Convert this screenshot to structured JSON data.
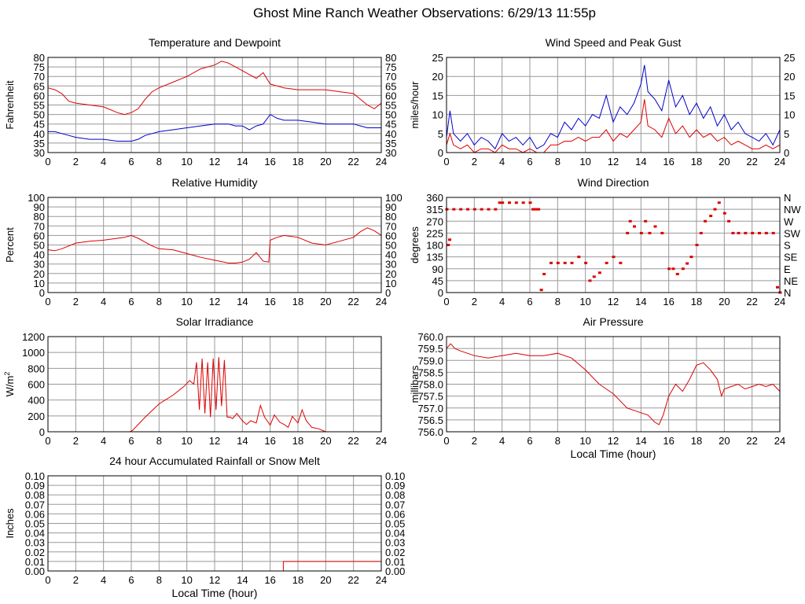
{
  "title": "Ghost Mine Ranch Weather Observations: 6/29/13 11:55p",
  "chart_data": [
    {
      "id": "temp",
      "type": "line",
      "title": "Temperature and Dewpoint",
      "ylabel": "Fahrenheit",
      "xlabel": "",
      "xlim": [
        0,
        24
      ],
      "ylim": [
        30,
        80
      ],
      "xticks": [
        "0",
        "2",
        "4",
        "6",
        "8",
        "10",
        "12",
        "14",
        "16",
        "18",
        "20",
        "22",
        "24"
      ],
      "yticks": [
        "30",
        "35",
        "40",
        "45",
        "50",
        "55",
        "60",
        "65",
        "70",
        "75",
        "80"
      ],
      "right_ticks": [
        "30",
        "35",
        "40",
        "45",
        "50",
        "55",
        "60",
        "65",
        "70",
        "75",
        "80"
      ],
      "series": [
        {
          "name": "",
          "color": "#dd0000",
          "x": [
            0,
            0.5,
            1,
            1.5,
            2,
            3,
            4,
            5,
            5.5,
            6,
            6.5,
            7,
            7.5,
            8,
            9,
            10,
            11,
            12,
            12.5,
            13,
            13.5,
            14,
            14.5,
            15,
            15.5,
            16,
            16.5,
            17,
            18,
            19,
            20,
            21,
            22,
            22.5,
            23,
            23.5,
            24
          ],
          "y": [
            64,
            63,
            61,
            57,
            56,
            55,
            54,
            51,
            50,
            51,
            53,
            58,
            62,
            64,
            67,
            70,
            74,
            76,
            78,
            77,
            75,
            73,
            71,
            69,
            72,
            66,
            65,
            64,
            63,
            63,
            63,
            62,
            61,
            58,
            55,
            53,
            56
          ]
        },
        {
          "name": "",
          "color": "#0000cc",
          "x": [
            0,
            0.5,
            1,
            1.5,
            2,
            3,
            4,
            5,
            5.5,
            6,
            6.5,
            7,
            7.5,
            8,
            9,
            10,
            11,
            12,
            12.5,
            13,
            13.5,
            14,
            14.5,
            15,
            15.5,
            16,
            16.5,
            17,
            18,
            19,
            20,
            21,
            22,
            22.5,
            23,
            23.5,
            24
          ],
          "y": [
            41,
            41,
            40,
            39,
            38,
            37,
            37,
            36,
            36,
            36,
            37,
            39,
            40,
            41,
            42,
            43,
            44,
            45,
            45,
            45,
            44,
            44,
            42,
            44,
            45,
            50,
            48,
            47,
            47,
            46,
            45,
            45,
            45,
            44,
            43,
            43,
            43
          ]
        }
      ]
    },
    {
      "id": "wind",
      "type": "line",
      "title": "Wind Speed and Peak Gust",
      "ylabel": "miles/hour",
      "xlabel": "",
      "xlim": [
        0,
        24
      ],
      "ylim": [
        0,
        25
      ],
      "xticks": [
        "0",
        "2",
        "4",
        "6",
        "8",
        "10",
        "12",
        "14",
        "16",
        "18",
        "20",
        "22",
        "24"
      ],
      "yticks": [
        "0",
        "5",
        "10",
        "15",
        "20",
        "25"
      ],
      "right_ticks": [
        "0",
        "5",
        "10",
        "15",
        "20",
        "25"
      ],
      "series": [
        {
          "name": "",
          "color": "#0000cc",
          "x": [
            0,
            0.25,
            0.5,
            1,
            1.5,
            2,
            2.5,
            3,
            3.5,
            4,
            4.5,
            5,
            5.5,
            6,
            6.5,
            7,
            7.5,
            8,
            8.5,
            9,
            9.5,
            10,
            10.5,
            11,
            11.5,
            12,
            12.5,
            13,
            13.5,
            14,
            14.25,
            14.5,
            15,
            15.5,
            16,
            16.5,
            17,
            17.5,
            18,
            18.5,
            19,
            19.5,
            20,
            20.5,
            21,
            21.5,
            22,
            22.5,
            23,
            23.5,
            24
          ],
          "y": [
            4,
            11,
            5,
            3,
            5,
            2,
            4,
            3,
            1,
            5,
            3,
            4,
            2,
            4,
            1,
            2,
            5,
            4,
            8,
            6,
            9,
            7,
            10,
            9,
            15,
            8,
            12,
            10,
            13,
            18,
            23,
            16,
            14,
            11,
            19,
            12,
            15,
            10,
            13,
            9,
            12,
            7,
            10,
            6,
            8,
            5,
            4,
            3,
            5,
            2,
            6
          ]
        },
        {
          "name": "",
          "color": "#dd0000",
          "x": [
            0,
            0.25,
            0.5,
            1,
            1.5,
            2,
            2.5,
            3,
            3.5,
            4,
            4.5,
            5,
            5.5,
            6,
            6.5,
            7,
            7.5,
            8,
            8.5,
            9,
            9.5,
            10,
            10.5,
            11,
            11.5,
            12,
            12.5,
            13,
            13.5,
            14,
            14.25,
            14.5,
            15,
            15.5,
            16,
            16.5,
            17,
            17.5,
            18,
            18.5,
            19,
            19.5,
            20,
            20.5,
            21,
            21.5,
            22,
            22.5,
            23,
            23.5,
            24
          ],
          "y": [
            2,
            5,
            2,
            1,
            2,
            0,
            1,
            1,
            0,
            2,
            1,
            1,
            0,
            1,
            0,
            0,
            2,
            2,
            3,
            3,
            4,
            3,
            4,
            4,
            6,
            3,
            5,
            4,
            6,
            8,
            14,
            7,
            6,
            4,
            9,
            5,
            7,
            4,
            6,
            4,
            5,
            3,
            4,
            2,
            3,
            2,
            1,
            1,
            2,
            1,
            2
          ]
        }
      ]
    },
    {
      "id": "humidity",
      "type": "line",
      "title": "Relative Humidity",
      "ylabel": "Percent",
      "xlabel": "",
      "xlim": [
        0,
        24
      ],
      "ylim": [
        0,
        100
      ],
      "xticks": [
        "0",
        "2",
        "4",
        "6",
        "8",
        "10",
        "12",
        "14",
        "16",
        "18",
        "20",
        "22",
        "24"
      ],
      "yticks": [
        "0",
        "10",
        "20",
        "30",
        "40",
        "50",
        "60",
        "70",
        "80",
        "90",
        "100"
      ],
      "right_ticks": [
        "0",
        "10",
        "20",
        "30",
        "40",
        "50",
        "60",
        "70",
        "80",
        "90",
        "100"
      ],
      "series": [
        {
          "name": "",
          "color": "#dd0000",
          "x": [
            0,
            0.5,
            1,
            2,
            3,
            4,
            5,
            5.5,
            6,
            6.5,
            7,
            7.5,
            8,
            9,
            10,
            11,
            12,
            13,
            13.5,
            14,
            14.5,
            15,
            15.5,
            15.9,
            16,
            16.5,
            17,
            18,
            19,
            20,
            21,
            22,
            22.5,
            23,
            23.5,
            24
          ],
          "y": [
            45,
            44,
            46,
            52,
            54,
            55,
            57,
            58,
            60,
            57,
            53,
            49,
            46,
            45,
            41,
            37,
            34,
            31,
            31,
            32,
            35,
            42,
            33,
            32,
            55,
            58,
            60,
            58,
            52,
            50,
            54,
            58,
            64,
            68,
            65,
            60
          ]
        }
      ]
    },
    {
      "id": "direction",
      "type": "scatter",
      "title": "Wind Direction",
      "ylabel": "degrees",
      "xlabel": "",
      "xlim": [
        0,
        24
      ],
      "ylim": [
        0,
        360
      ],
      "xticks": [
        "0",
        "2",
        "4",
        "6",
        "8",
        "10",
        "12",
        "14",
        "16",
        "18",
        "20",
        "22",
        "24"
      ],
      "yticks": [
        "0",
        "45",
        "90",
        "135",
        "180",
        "225",
        "270",
        "315",
        "360"
      ],
      "right_ticks": [
        "N",
        "NE",
        "E",
        "SE",
        "S",
        "SW",
        "W",
        "NW",
        "N"
      ],
      "series": [
        {
          "name": "",
          "color": "#dd0000",
          "x": [
            0,
            0.1,
            0.2,
            0.5,
            1,
            1.5,
            2,
            2.5,
            3,
            3.5,
            3.8,
            4,
            4.5,
            5,
            5.5,
            6,
            6.2,
            6.4,
            6.6,
            6.8,
            7,
            7.5,
            8,
            8.5,
            9,
            9.5,
            10,
            10.3,
            10.6,
            11,
            11.5,
            12,
            12.5,
            13,
            13.2,
            13.5,
            14,
            14.3,
            14.6,
            15,
            15.5,
            16,
            16.3,
            16.6,
            17,
            17.3,
            17.6,
            18,
            18.3,
            18.6,
            19,
            19.3,
            19.6,
            20,
            20.3,
            20.6,
            21,
            21.5,
            22,
            22.5,
            23,
            23.5,
            23.8,
            24
          ],
          "y": [
            315,
            180,
            200,
            315,
            315,
            315,
            315,
            315,
            315,
            315,
            340,
            340,
            340,
            340,
            340,
            340,
            315,
            315,
            315,
            10,
            70,
            112,
            112,
            112,
            112,
            135,
            112,
            45,
            60,
            75,
            112,
            135,
            112,
            225,
            270,
            250,
            225,
            270,
            225,
            250,
            225,
            90,
            90,
            70,
            90,
            110,
            135,
            180,
            225,
            270,
            290,
            315,
            340,
            300,
            270,
            225,
            225,
            225,
            225,
            225,
            225,
            225,
            20,
            0
          ]
        }
      ]
    },
    {
      "id": "solar",
      "type": "line",
      "title": "Solar Irradiance",
      "ylabel": "W/m2",
      "xlabel": "",
      "xlim": [
        0,
        24
      ],
      "ylim": [
        0,
        1300
      ],
      "xticks": [
        "0",
        "2",
        "4",
        "6",
        "8",
        "10",
        "12",
        "14",
        "16",
        "18",
        "20",
        "22",
        "24"
      ],
      "yticks": [
        "0",
        "200",
        "400",
        "600",
        "800",
        "1000",
        "1200"
      ],
      "right_ticks": [],
      "series": [
        {
          "name": "",
          "color": "#dd0000",
          "x": [
            0,
            5.9,
            6.1,
            7,
            8,
            9,
            9.8,
            10.2,
            10.5,
            10.7,
            10.9,
            11.1,
            11.3,
            11.5,
            11.7,
            11.9,
            12.1,
            12.3,
            12.5,
            12.7,
            12.9,
            13.1,
            13.3,
            13.6,
            14,
            14.3,
            14.6,
            15,
            15.3,
            15.6,
            16,
            16.3,
            16.7,
            17,
            17.3,
            17.6,
            18,
            18.3,
            18.6,
            19,
            19.5,
            20,
            20.5,
            21,
            24
          ],
          "y": [
            0,
            0,
            20,
            200,
            380,
            500,
            620,
            700,
            650,
            950,
            300,
            1000,
            250,
            950,
            200,
            1000,
            300,
            1020,
            350,
            980,
            200,
            200,
            180,
            250,
            150,
            100,
            150,
            120,
            360,
            200,
            90,
            230,
            130,
            100,
            60,
            210,
            120,
            300,
            150,
            60,
            40,
            0,
            0,
            0,
            0
          ]
        }
      ]
    },
    {
      "id": "pressure",
      "type": "line",
      "title": "Air Pressure",
      "ylabel": "millibars",
      "xlabel": "Local Time (hour)",
      "xlim": [
        0,
        24
      ],
      "ylim": [
        756.0,
        760.0
      ],
      "xticks": [
        "0",
        "2",
        "4",
        "6",
        "8",
        "10",
        "12",
        "14",
        "16",
        "18",
        "20",
        "22",
        "24"
      ],
      "yticks": [
        "756.0",
        "756.5",
        "757.0",
        "757.5",
        "758.0",
        "758.5",
        "759.0",
        "759.5",
        "760.0"
      ],
      "right_ticks": [],
      "series": [
        {
          "name": "",
          "color": "#dd0000",
          "x": [
            0,
            0.3,
            0.6,
            1,
            1.5,
            2,
            3,
            4,
            5,
            6,
            7,
            8,
            9,
            10,
            11,
            12,
            13,
            14,
            14.5,
            15,
            15.3,
            15.6,
            16,
            16.5,
            17,
            17.5,
            18,
            18.5,
            19,
            19.5,
            19.8,
            20,
            20.5,
            21,
            21.5,
            22,
            22.5,
            23,
            23.5,
            24
          ],
          "y": [
            759.5,
            759.7,
            759.5,
            759.4,
            759.3,
            759.2,
            759.1,
            759.2,
            759.3,
            759.2,
            759.2,
            759.3,
            759.1,
            758.6,
            758.0,
            757.6,
            757.0,
            756.8,
            756.7,
            756.4,
            756.3,
            756.7,
            757.5,
            758.0,
            757.7,
            758.2,
            758.8,
            758.9,
            758.6,
            758.2,
            757.5,
            757.8,
            757.9,
            758.0,
            757.8,
            757.9,
            758.0,
            757.9,
            758.0,
            757.7
          ]
        }
      ]
    },
    {
      "id": "rain",
      "type": "line",
      "title": "24 hour Accumulated Rainfall or Snow Melt",
      "ylabel": "Inches",
      "xlabel": "Local Time (hour)",
      "xlim": [
        0,
        24
      ],
      "ylim": [
        0,
        0.1
      ],
      "xticks": [
        "0",
        "2",
        "4",
        "6",
        "8",
        "10",
        "12",
        "14",
        "16",
        "18",
        "20",
        "22",
        "24"
      ],
      "yticks": [
        "0.00",
        "0.01",
        "0.02",
        "0.03",
        "0.04",
        "0.05",
        "0.06",
        "0.07",
        "0.08",
        "0.09",
        "0.10"
      ],
      "right_ticks": [
        "0.00",
        "0.01",
        "0.02",
        "0.03",
        "0.04",
        "0.05",
        "0.06",
        "0.07",
        "0.08",
        "0.09",
        "0.10"
      ],
      "series": [
        {
          "name": "",
          "color": "#dd0000",
          "x": [
            0,
            16.95,
            16.95,
            24
          ],
          "y": [
            0,
            0,
            0.01,
            0.01
          ]
        }
      ]
    }
  ]
}
